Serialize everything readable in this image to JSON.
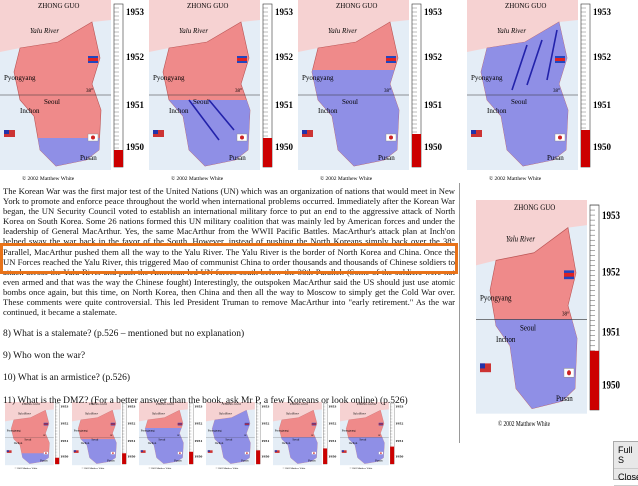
{
  "map_labels": {
    "country": "ZHONG GUO",
    "river": "Yalu River",
    "capital": "Pyongyang",
    "parallel": "38°",
    "seoul": "Seoul",
    "inchon": "Inchon",
    "pusan": "Pusan",
    "years": [
      "1953",
      "1952",
      "1951",
      "1950"
    ],
    "credit": "© 2002 Matthew White"
  },
  "article": {
    "paragraph": "The Korean War was the first major test of the United Nations (UN) which was an organization of nations that would meet in New York to promote and enforce peace throughout the world when international problems occurred. Immediately after the Korean War began, the UN Security Council voted to establish an international military force to put an end to the aggressive attack of North Korea on South Korea. Some 26 nations formed this UN military coalition that was mainly led by American forces and under the leadership of General MacArthur. Yes, the same MacArthur from the WWII Pacific Battles. MacArthur's attack plan at Inch'on helped sway the war back in the favor of the South. However, instead of pushing the North Koreans simply back over the 38° Parallel, MacArthur pushed them all the way to the Yalu River. The Yalu River is the border of North Korea and China. Once the UN Forces reached the Yalu River, this triggered Mao of communist China to order thousands and thousands of Chinese soldiers to attack across the Yalu River and push the American led UN forces south below the 38th Parallel. (Some of the soldiers were not even armed and that was the way the Chinese fought) Interestingly, the outspoken MacArthur said the US should just use atomic bombs once again, but this time, on North Korea, then China and then all the way to Moscow to simply get the Cold War over. These comments were quite controversial. This led President Truman to remove MacArthur into \"early retirement.\" As the war continued, it became a stalemate.",
    "questions": [
      "8) What is a stalemate? (p.526 – mentioned but no explanation)",
      "9) Who won the war?",
      "10) What is an armistice? (p.526)",
      "11) What is the DMZ? (For a better answer than the book, ask Mr P, a few Koreans or look online) (p.526)"
    ]
  },
  "menu": {
    "items": [
      "Full S",
      "Close"
    ]
  }
}
